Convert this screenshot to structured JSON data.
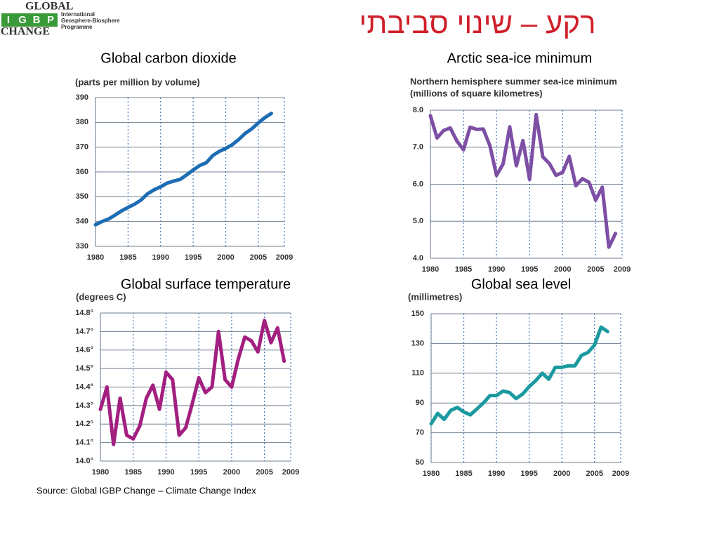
{
  "title": "רקע – שינוי סביבתי",
  "logo": {
    "top": "GLOBAL",
    "letters": [
      "I",
      "G",
      "B",
      "P"
    ],
    "bottom": "CHANGE",
    "org": [
      "International",
      "Geosphere-Biosphere",
      "Programme"
    ]
  },
  "source": "Source: Global IGBP Change – Climate Change Index",
  "chart_data": [
    {
      "type": "line",
      "title": "Global carbon dioxide",
      "y_label": [
        "(parts per million by volume)"
      ],
      "x": [
        1980,
        1981,
        1982,
        1983,
        1984,
        1985,
        1986,
        1987,
        1988,
        1989,
        1990,
        1991,
        1992,
        1993,
        1994,
        1995,
        1996,
        1997,
        1998,
        1999,
        2000,
        2001,
        2002,
        2003,
        2004,
        2005,
        2006,
        2007
      ],
      "series": [
        {
          "name": "Global carbon dioxide",
          "color": "#1c6db3",
          "values": [
            338.7,
            340,
            341,
            342.6,
            344.3,
            345.7,
            347,
            348.7,
            351.2,
            352.8,
            354,
            355.5,
            356.3,
            357,
            358.8,
            360.8,
            362.6,
            363.7,
            366.6,
            368.3,
            369.5,
            371,
            373.1,
            375.6,
            377.4,
            379.8,
            381.9,
            383.6
          ]
        }
      ],
      "xlim": [
        1980,
        2009
      ],
      "xticks": [
        1980,
        1985,
        1990,
        1995,
        2000,
        2005,
        2009
      ],
      "ylim": [
        330,
        390
      ],
      "yticks": [
        330,
        340,
        350,
        360,
        370,
        380,
        390
      ],
      "grid": true
    },
    {
      "type": "line",
      "title": "Arctic sea-ice minimum",
      "y_label": [
        "Northern hemisphere summer sea-ice minimum",
        "(millions of square kilometres)"
      ],
      "x": [
        1980,
        1981,
        1982,
        1983,
        1984,
        1985,
        1986,
        1987,
        1988,
        1989,
        1990,
        1991,
        1992,
        1993,
        1994,
        1995,
        1996,
        1997,
        1998,
        1999,
        2000,
        2001,
        2002,
        2003,
        2004,
        2005,
        2006,
        2007,
        2008
      ],
      "series": [
        {
          "name": "Arctic sea-ice minimum",
          "color": "#7d4fa5",
          "values": [
            7.85,
            7.25,
            7.45,
            7.52,
            7.17,
            6.93,
            7.54,
            7.48,
            7.49,
            7.04,
            6.24,
            6.55,
            7.55,
            6.5,
            7.18,
            6.13,
            7.88,
            6.74,
            6.56,
            6.24,
            6.32,
            6.75,
            5.96,
            6.15,
            6.05,
            5.57,
            5.92,
            4.3,
            4.67
          ]
        }
      ],
      "xlim": [
        1980,
        2009
      ],
      "xticks": [
        1980,
        1985,
        1990,
        1995,
        2000,
        2005,
        2009
      ],
      "ylim": [
        4,
        8
      ],
      "yticks": [
        {
          "value": 4,
          "label": "4.0"
        },
        {
          "value": 5,
          "label": "5.0"
        },
        {
          "value": 6,
          "label": "6.0"
        },
        {
          "value": 7,
          "label": "7.0"
        },
        {
          "value": 8,
          "label": "8.0"
        }
      ],
      "grid": true
    },
    {
      "type": "line",
      "title": "Global surface temperature",
      "y_label": [
        "(degrees C)"
      ],
      "x": [
        1980,
        1981,
        1982,
        1983,
        1984,
        1985,
        1986,
        1987,
        1988,
        1989,
        1990,
        1991,
        1992,
        1993,
        1994,
        1995,
        1996,
        1997,
        1998,
        1999,
        2000,
        2001,
        2002,
        2003,
        2004,
        2005,
        2006,
        2007,
        2008
      ],
      "series": [
        {
          "name": "Global surface temperature",
          "color": "#a21f80",
          "values": [
            14.28,
            14.4,
            14.09,
            14.34,
            14.14,
            14.12,
            14.19,
            14.34,
            14.41,
            14.28,
            14.48,
            14.44,
            14.14,
            14.18,
            14.31,
            14.45,
            14.37,
            14.4,
            14.7,
            14.44,
            14.4,
            14.55,
            14.67,
            14.65,
            14.59,
            14.76,
            14.64,
            14.72,
            14.54
          ]
        }
      ],
      "xlim": [
        1980,
        2009
      ],
      "xticks": [
        1980,
        1985,
        1990,
        1995,
        2000,
        2005,
        2009
      ],
      "ylim": [
        14,
        14.8
      ],
      "yticks": [
        {
          "value": 14,
          "label": "14.0°"
        },
        {
          "value": 14.1,
          "label": "14.1°"
        },
        {
          "value": 14.2,
          "label": "14.2°"
        },
        {
          "value": 14.3,
          "label": "14.3°"
        },
        {
          "value": 14.4,
          "label": "14.4°"
        },
        {
          "value": 14.5,
          "label": "14.5°"
        },
        {
          "value": 14.6,
          "label": "14.6°"
        },
        {
          "value": 14.7,
          "label": "14.7°"
        },
        {
          "value": 14.8,
          "label": "14.8°"
        }
      ],
      "grid": true
    },
    {
      "type": "line",
      "title": "Global sea level",
      "y_label": [
        "(millimetres)"
      ],
      "x": [
        1980,
        1981,
        1982,
        1983,
        1984,
        1985,
        1986,
        1987,
        1988,
        1989,
        1990,
        1991,
        1992,
        1993,
        1994,
        1995,
        1996,
        1997,
        1998,
        1999,
        2000,
        2001,
        2002,
        2003,
        2004,
        2005,
        2006,
        2007
      ],
      "series": [
        {
          "name": "Global sea level",
          "color": "#1a9aa0",
          "values": [
            76,
            83,
            79,
            85,
            87,
            84,
            82,
            86,
            90,
            95,
            95,
            98,
            97,
            93,
            96,
            101,
            105,
            110,
            106,
            114,
            114,
            115,
            115,
            122,
            124,
            129,
            141,
            138
          ]
        }
      ],
      "xlim": [
        1980,
        2009
      ],
      "xticks": [
        1980,
        1985,
        1990,
        1995,
        2000,
        2005,
        2009
      ],
      "ylim": [
        50,
        150
      ],
      "yticks": [
        50,
        70,
        90,
        110,
        130,
        150
      ],
      "grid": true
    }
  ]
}
